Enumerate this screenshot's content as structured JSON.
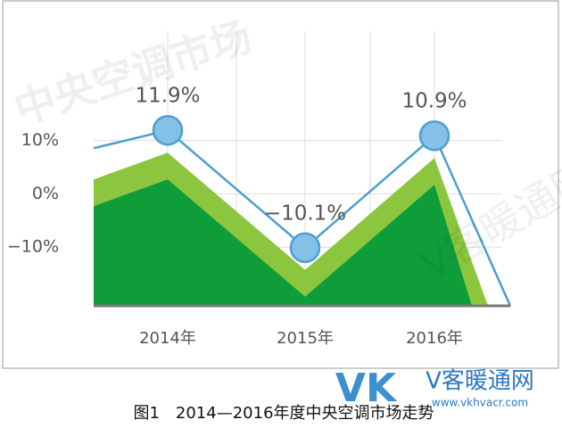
{
  "chart_data": {
    "type": "line",
    "categories": [
      "2014年",
      "2015年",
      "2016年"
    ],
    "series": [
      {
        "values": [
          11.9,
          -10.1,
          10.9
        ],
        "value_labels": [
          "11.9%",
          "−10.1%",
          "10.9%"
        ],
        "color": "#4a9fd0"
      }
    ],
    "ylim": [
      -21,
      33
    ],
    "yticks": [
      {
        "value": 10,
        "label": "10%"
      },
      {
        "value": 0,
        "label": "0%"
      },
      {
        "value": -10,
        "label": "−10%"
      }
    ],
    "grid": true,
    "caption": "图1　2014—2016年度中央空调市场走势"
  },
  "logo": {
    "mark": "VK",
    "name": "V客暖通网",
    "url": "www.vkhvacr.com"
  },
  "watermarks": [
    "中央空调市场",
    "V客暖通网"
  ]
}
